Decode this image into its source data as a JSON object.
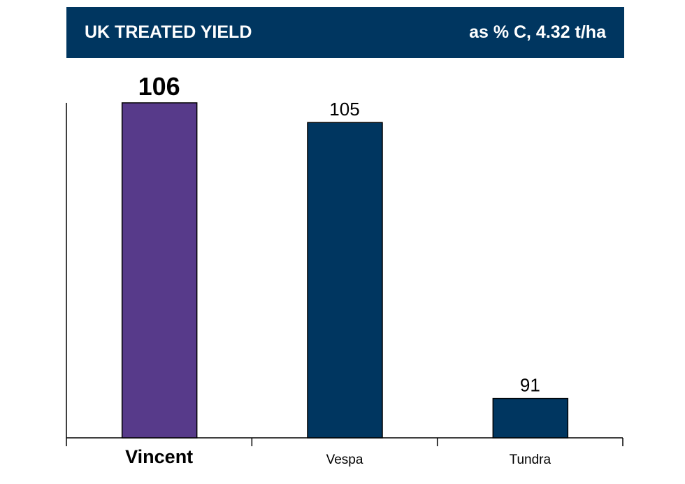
{
  "chart_data": {
    "type": "bar",
    "title": "UK TREATED YIELD",
    "subtitle": "as % C, 4.32 t/ha",
    "categories": [
      "Vincent",
      "Vespa",
      "Tundra"
    ],
    "values": [
      106,
      105,
      91
    ],
    "highlight": [
      true,
      false,
      false
    ],
    "colors": {
      "highlight": "#573a8a",
      "default": "#003660",
      "header": "#003660"
    },
    "xlabel": "",
    "ylabel": "",
    "ylim": [
      89,
      106
    ],
    "grid": false
  }
}
